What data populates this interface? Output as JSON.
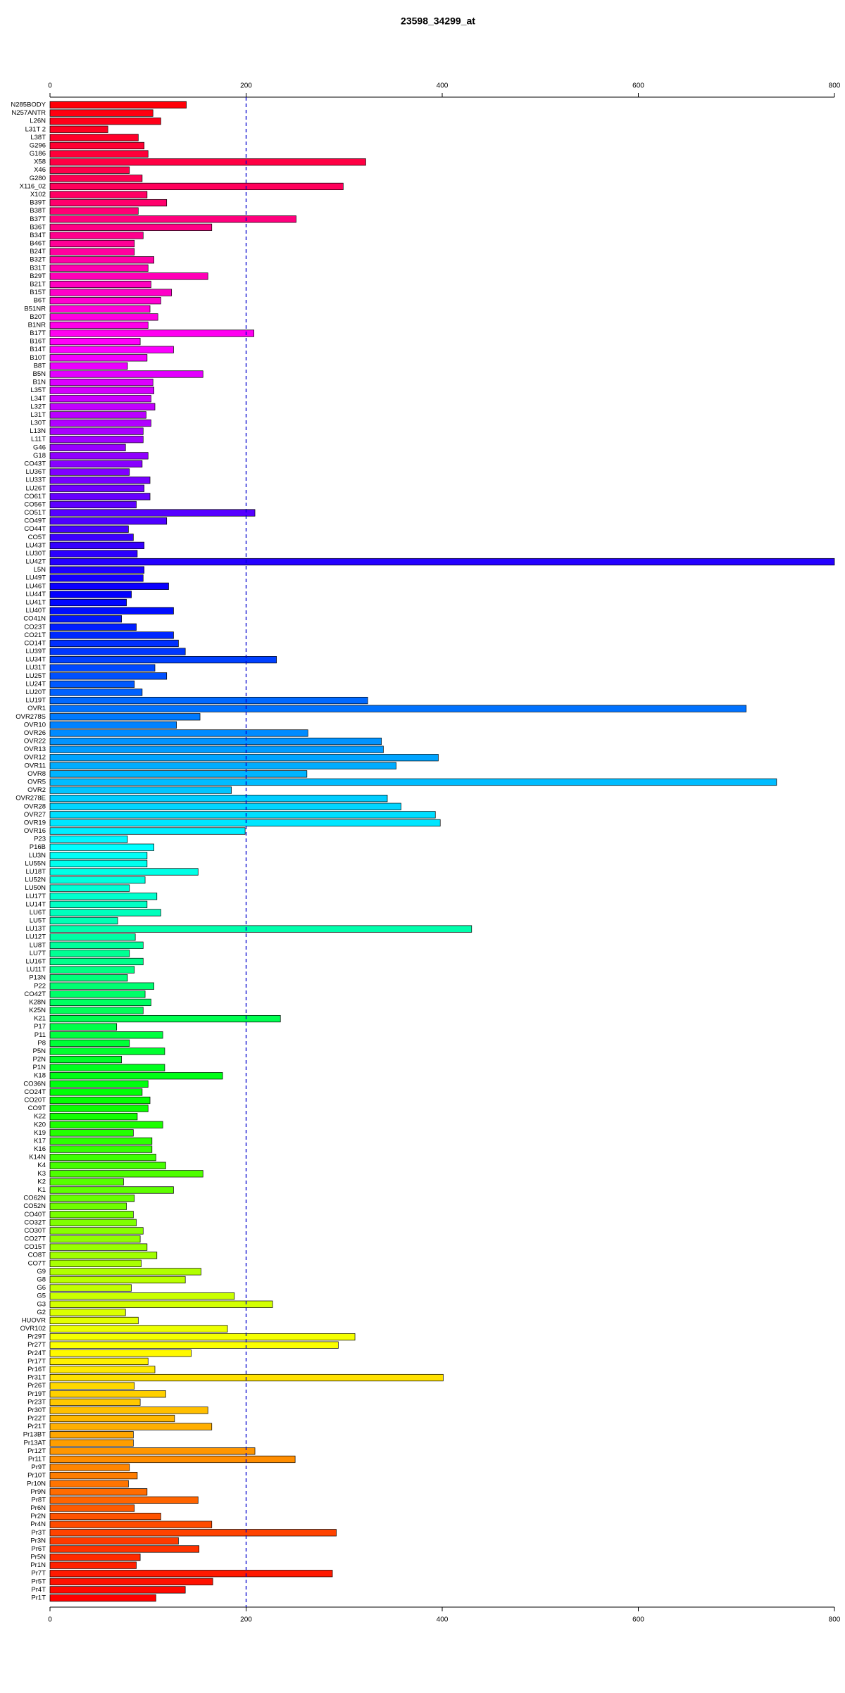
{
  "chart_data": {
    "type": "barh",
    "title": "23598_34299_at",
    "categories": [
      "N285BODY",
      "N257ANTR",
      "L26N",
      "L31T 2",
      "L38T",
      "G296",
      "G186",
      "X58",
      "X46",
      "G280",
      "X116_02",
      "X102",
      "B39T",
      "B38T",
      "B37T",
      "B36T",
      "B34T",
      "B46T",
      "B24T",
      "B32T",
      "B31T",
      "B29T",
      "B21T",
      "B15T",
      "B6T",
      "B51NR",
      "B20T",
      "B1NR",
      "B17T",
      "B16T",
      "B14T",
      "B10T",
      "B8T",
      "B5N",
      "B1N",
      "L35T",
      "L34T",
      "L32T",
      "L31T",
      "L30T",
      "L13N",
      "L11T",
      "G46",
      "G18",
      "CO43T",
      "LU36T",
      "LU33T",
      "LU26T",
      "CO61T",
      "CO56T",
      "CO51T",
      "CO49T",
      "CO44T",
      "CO5T",
      "LU43T",
      "LU30T",
      "LU42T",
      "L5N",
      "LU49T",
      "LU46T",
      "LU44T",
      "LU41T",
      "LU40T",
      "CO41N",
      "CO23T",
      "CO21T",
      "CO14T",
      "LU39T",
      "LU34T",
      "LU31T",
      "LU25T",
      "LU24T",
      "LU20T",
      "LU19T",
      "OVR1",
      "OVR278S",
      "OVR10",
      "OVR26",
      "OVR22",
      "OVR13",
      "OVR12",
      "OVR11",
      "OVR8",
      "OVR5",
      "OVR2",
      "OVR278E",
      "OVR28",
      "OVR27",
      "OVR19",
      "OVR16",
      "P23",
      "P16B",
      "LU3N",
      "LU55N",
      "LU18T",
      "LU52N",
      "LU50N",
      "LU17T",
      "LU14T",
      "LU6T",
      "LU5T",
      "LU13T",
      "LU12T",
      "LU8T",
      "LU7T",
      "LU16T",
      "LU11T",
      "P13N",
      "P22",
      "CO42T",
      "K28N",
      "K25N",
      "K21",
      "P17",
      "P11",
      "P8",
      "P5N",
      "P2N",
      "P1N",
      "K18",
      "CO36N",
      "CO24T",
      "CO20T",
      "CO9T",
      "K22",
      "K20",
      "K19",
      "K17",
      "K16",
      "K14N",
      "K4",
      "K3",
      "K2",
      "K1",
      "CO62N",
      "CO52N",
      "CO40T",
      "CO32T",
      "CO30T",
      "CO27T",
      "CO15T",
      "CO8T",
      "CO7T",
      "G9",
      "G8",
      "G6",
      "G5",
      "G3",
      "G2",
      "HUOVR",
      "OVR102",
      "Pr29T",
      "Pr27T",
      "Pr24T",
      "Pr17T",
      "Pr16T",
      "Pr31T",
      "Pr26T",
      "Pr19T",
      "Pr23T",
      "Pr30T",
      "Pr22T",
      "Pr21T",
      "Pr13BT",
      "Pr13AT",
      "Pr12T",
      "Pr11T",
      "Pr9T",
      "Pr10T",
      "Pr10N",
      "Pr9N",
      "Pr8T",
      "Pr6N",
      "Pr2N",
      "Pr4N",
      "Pr3T",
      "Pr3N",
      "Pr6T",
      "Pr5N",
      "Pr1N",
      "Pr7T",
      "Pr5T",
      "Pr4T",
      "Pr1T"
    ],
    "values": [
      139,
      105,
      113,
      59,
      90,
      96,
      100,
      322,
      81,
      94,
      299,
      99,
      119,
      90,
      251,
      165,
      95,
      86,
      86,
      106,
      100,
      161,
      103,
      124,
      113,
      102,
      110,
      100,
      208,
      92,
      126,
      99,
      79,
      156,
      105,
      106,
      103,
      107,
      98,
      103,
      95,
      95,
      77,
      100,
      94,
      81,
      102,
      96,
      102,
      88,
      209,
      119,
      80,
      85,
      96,
      89,
      800,
      96,
      95,
      121,
      83,
      78,
      126,
      73,
      88,
      126,
      131,
      138,
      231,
      107,
      119,
      86,
      94,
      324,
      710,
      153,
      129,
      263,
      338,
      340,
      396,
      353,
      262,
      741,
      185,
      344,
      358,
      393,
      398,
      199,
      79,
      106,
      99,
      99,
      151,
      97,
      81,
      109,
      99,
      113,
      69,
      430,
      87,
      95,
      81,
      95,
      86,
      79,
      106,
      97,
      103,
      95,
      235,
      68,
      115,
      81,
      117,
      73,
      117,
      176,
      100,
      94,
      102,
      100,
      89,
      115,
      85,
      104,
      104,
      108,
      118,
      156,
      75,
      126,
      86,
      78,
      85,
      88,
      95,
      92,
      99,
      109,
      93,
      154,
      138,
      83,
      188,
      227,
      77,
      90,
      181,
      311,
      294,
      144,
      100,
      107,
      401,
      86,
      118,
      92,
      161,
      127,
      165,
      85,
      85,
      209,
      250,
      81,
      89,
      80,
      99,
      151,
      86,
      113,
      165,
      292,
      131,
      152,
      92,
      88,
      288,
      166,
      138,
      108
    ],
    "color_scheme": "rainbow",
    "xlim": [
      0,
      800
    ],
    "xticks": [
      0,
      200,
      400,
      600,
      800
    ],
    "reference_line": {
      "value": 200,
      "color": "#0000cc"
    }
  }
}
